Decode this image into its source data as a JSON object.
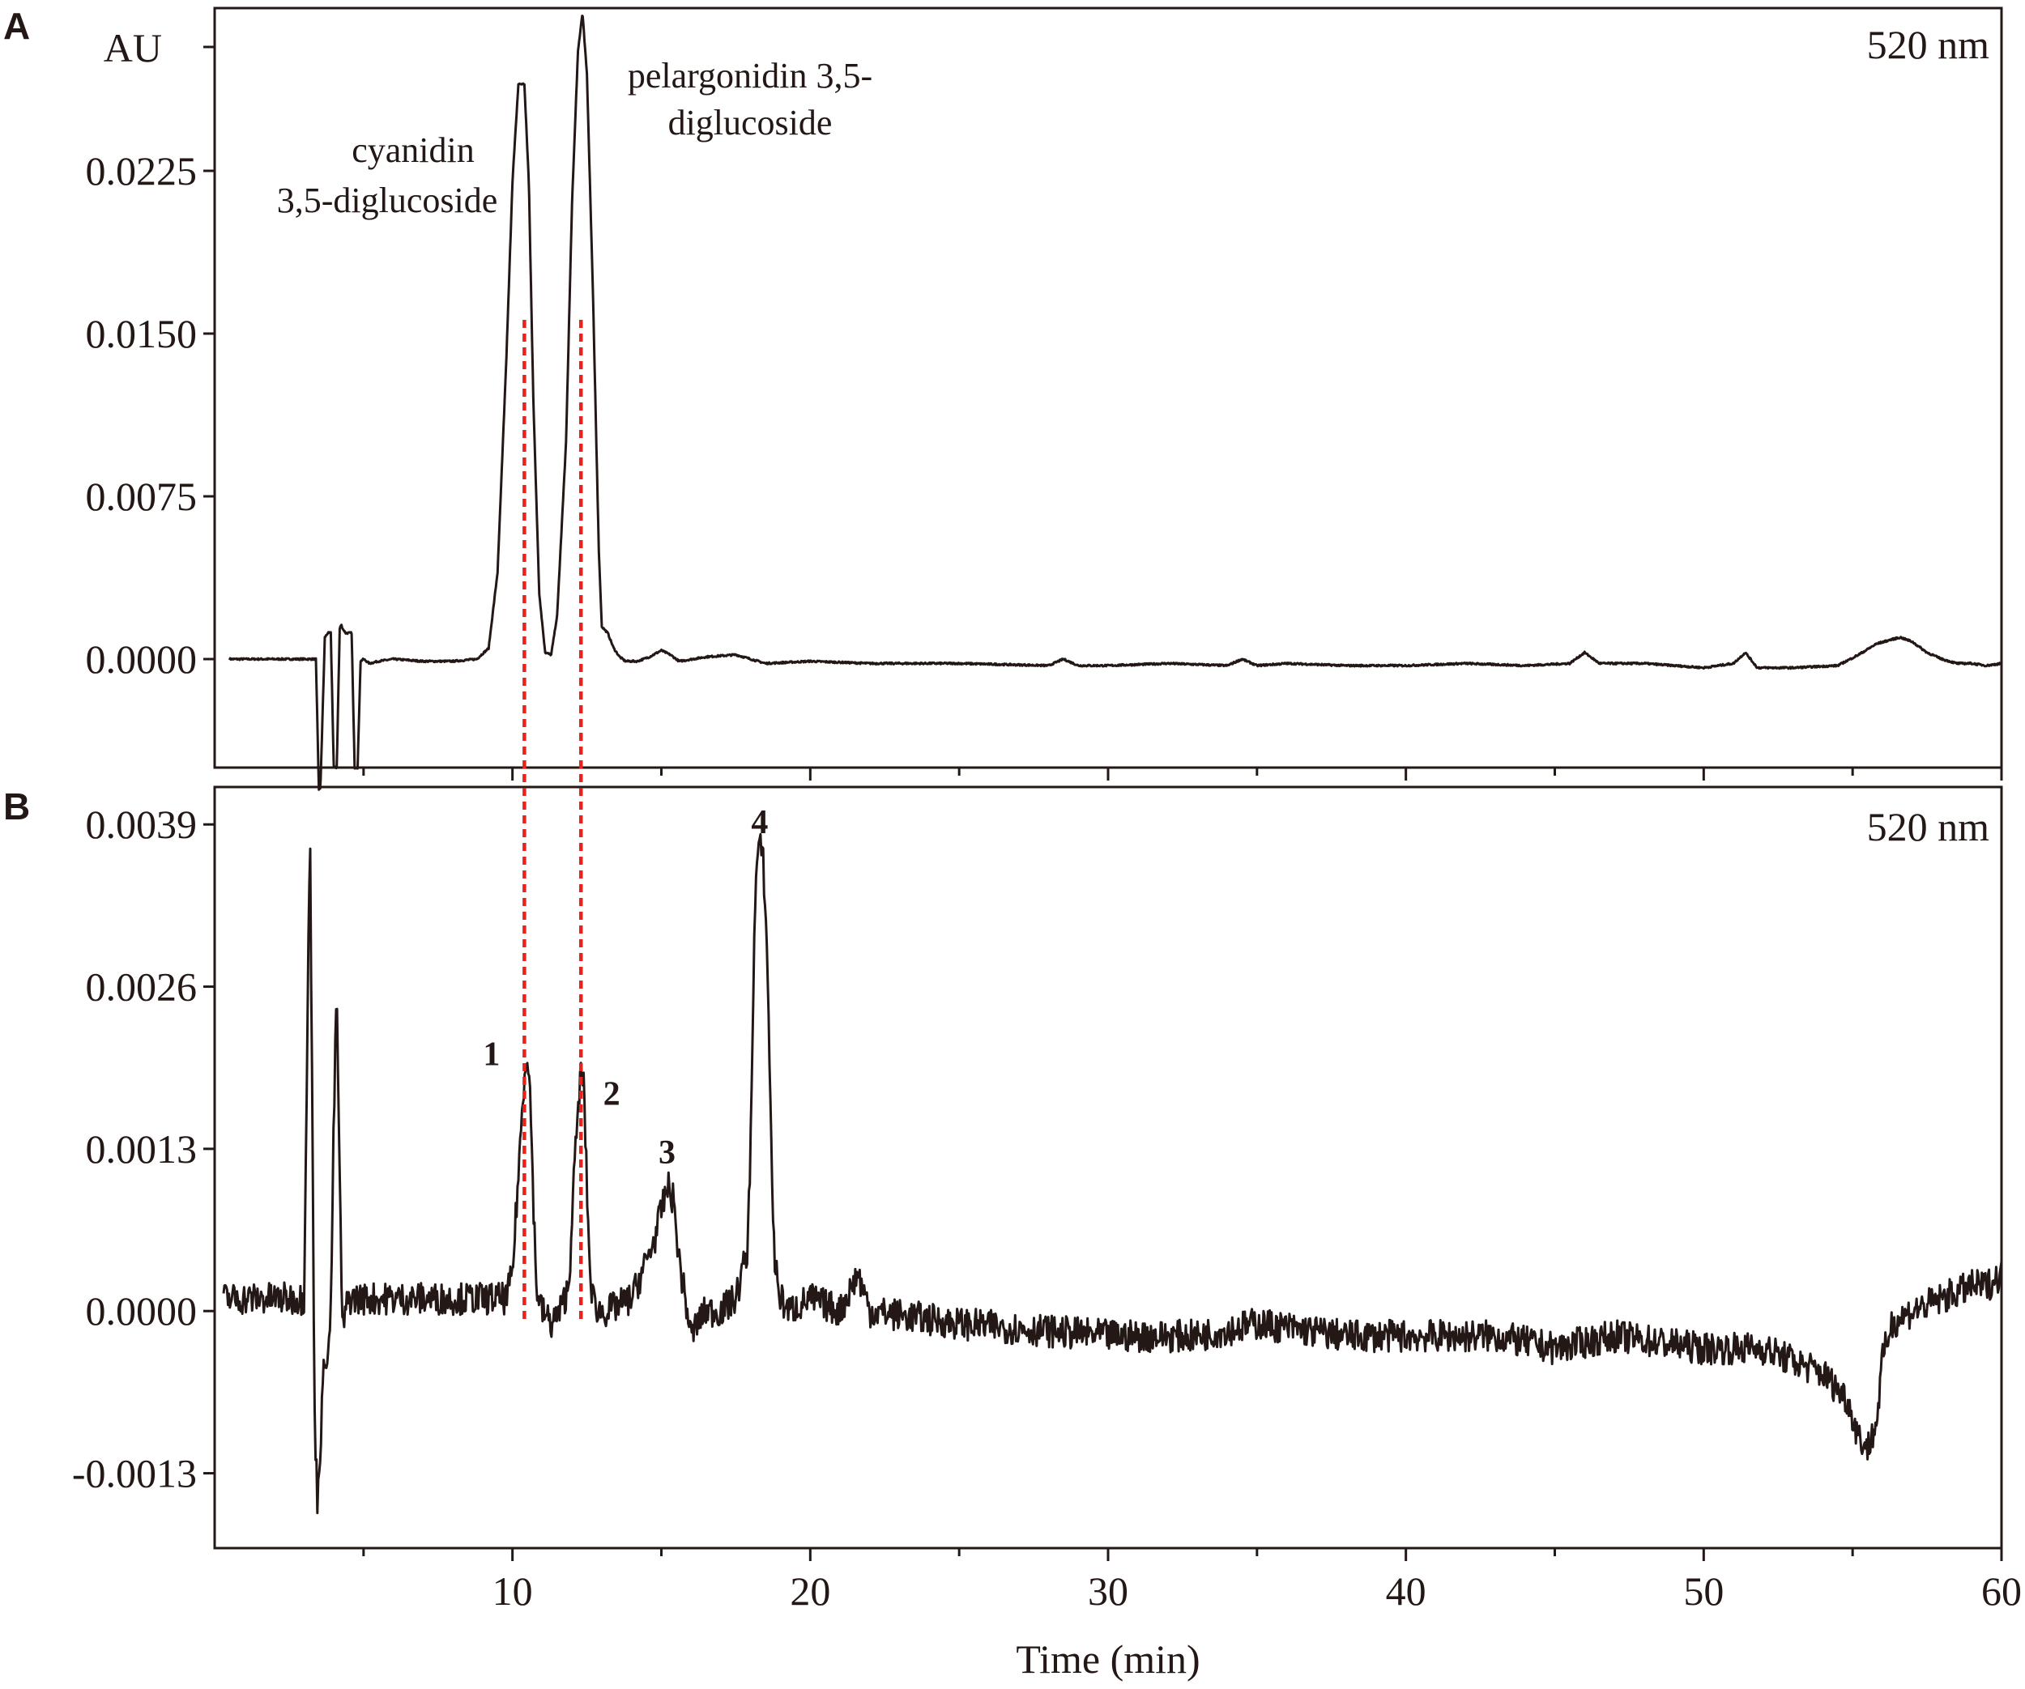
{
  "colors": {
    "ink": "#231815",
    "guide_line": "#e8231c",
    "background": "#ffffff"
  },
  "chart_data": [
    {
      "type": "line",
      "panel_label": "A",
      "ylabel": "AU",
      "wavelength": "520 nm",
      "xlim": [
        0,
        60
      ],
      "ylim": [
        -0.005,
        0.03
      ],
      "yticks": [
        0.0,
        0.0075,
        0.015,
        0.0225
      ],
      "ytick_labels": [
        "0.0000",
        "0.0075",
        "0.0150",
        "0.0225"
      ],
      "grid": false,
      "series": [
        {
          "x": [
            0.5,
            2.0,
            3.0,
            3.4,
            3.5,
            3.55,
            3.7,
            3.8,
            3.9,
            4.0,
            4.1,
            4.2,
            4.25,
            4.3,
            4.4,
            4.5,
            4.6,
            4.7,
            4.8,
            4.9,
            5.0,
            5.2,
            5.5,
            6.0,
            7.0,
            8.0,
            8.8,
            9.2,
            9.5,
            9.8,
            10.0,
            10.2,
            10.4,
            10.55,
            10.7,
            10.9,
            11.1,
            11.3,
            11.5,
            11.8,
            12.0,
            12.2,
            12.35,
            12.5,
            12.7,
            12.9,
            13.0,
            13.2,
            13.4,
            13.6,
            13.8,
            14.2,
            14.6,
            15.0,
            15.3,
            15.6,
            16.5,
            17.5,
            18.0,
            18.5,
            20,
            22,
            25,
            28,
            28.5,
            29,
            30,
            32,
            34,
            34.5,
            35,
            36,
            38,
            40,
            42,
            44,
            45.5,
            46.0,
            46.5,
            48,
            50,
            51.0,
            51.4,
            51.8,
            53,
            54.5,
            55.2,
            55.8,
            56.3,
            56.6,
            57.0,
            57.5,
            58.0,
            58.5,
            59.0,
            59.5,
            60.0
          ],
          "y": [
            0.0,
            0.0,
            0.0,
            0.0,
            -0.006,
            -0.006,
            0.001,
            0.0012,
            0.0012,
            -0.005,
            -0.005,
            0.0014,
            0.0016,
            0.0014,
            0.0012,
            0.0012,
            0.0012,
            -0.005,
            -0.005,
            -0.0001,
            0.0,
            -0.0002,
            -0.0001,
            0.0,
            -0.0001,
            -0.0001,
            0.0,
            0.0005,
            0.004,
            0.014,
            0.022,
            0.0265,
            0.0265,
            0.022,
            0.012,
            0.003,
            0.0003,
            0.0002,
            0.002,
            0.01,
            0.021,
            0.028,
            0.0298,
            0.027,
            0.017,
            0.005,
            0.0015,
            0.0012,
            0.0005,
            0.0001,
            -0.0001,
            -0.0001,
            0.0001,
            0.0004,
            0.0002,
            -0.0001,
            0.0001,
            0.0002,
            0.0,
            -0.0002,
            -0.0001,
            -0.0002,
            -0.0002,
            -0.0003,
            0.0,
            -0.0003,
            -0.0003,
            -0.0002,
            -0.0003,
            0.0,
            -0.0003,
            -0.0002,
            -0.0003,
            -0.0003,
            -0.0002,
            -0.0003,
            -0.0002,
            0.0003,
            -0.0002,
            -0.0002,
            -0.0004,
            -0.0002,
            0.0003,
            -0.0004,
            -0.0004,
            -0.0003,
            0.0002,
            0.0007,
            0.0009,
            0.001,
            0.0008,
            0.0003,
            0.0,
            -0.0002,
            -0.0002,
            -0.0003,
            -0.0002
          ]
        }
      ],
      "annotations": [
        {
          "text_lines": [
            "cyanidin",
            "3,5-diglucoside"
          ],
          "x": 8.0
        },
        {
          "text_lines": [
            "pelargonidin 3,5-",
            "diglucoside"
          ],
          "x": 15.5
        }
      ]
    },
    {
      "type": "line",
      "panel_label": "B",
      "wavelength": "520 nm",
      "xlabel": "Time (min)",
      "xlim": [
        0,
        60
      ],
      "ylim": [
        -0.0019,
        0.0042
      ],
      "xticks": [
        10,
        20,
        30,
        40,
        50,
        60
      ],
      "xtick_labels": [
        "10",
        "20",
        "30",
        "40",
        "50",
        "60"
      ],
      "yticks": [
        -0.0013,
        0.0,
        0.0013,
        0.0026,
        0.0039
      ],
      "ytick_labels": [
        "-0.0013",
        "0.0000",
        "0.0013",
        "0.0026",
        "0.0039"
      ],
      "grid": false,
      "series": [
        {
          "x": [
            0.3,
            1.0,
            2.0,
            3.0,
            3.1,
            3.2,
            3.3,
            3.35,
            3.45,
            3.5,
            3.6,
            3.7,
            3.8,
            3.9,
            4.0,
            4.1,
            4.2,
            4.3,
            4.4,
            4.5,
            4.6,
            5.0,
            6.0,
            7.0,
            8.0,
            9.0,
            9.8,
            10.0,
            10.2,
            10.4,
            10.5,
            10.6,
            10.7,
            10.8,
            11.0,
            11.3,
            11.6,
            11.9,
            12.0,
            12.2,
            12.3,
            12.4,
            12.5,
            12.6,
            12.7,
            12.9,
            13.2,
            14.0,
            14.5,
            14.8,
            15.0,
            15.2,
            15.4,
            15.6,
            15.8,
            16.0,
            16.2,
            16.5,
            17.0,
            17.5,
            17.9,
            18.0,
            18.1,
            18.2,
            18.3,
            18.4,
            18.5,
            18.6,
            18.7,
            18.8,
            19.0,
            19.3,
            20.0,
            21.0,
            21.6,
            22.0,
            25.0,
            30.0,
            33.0,
            35.0,
            38.0,
            40.0,
            43.0,
            45.0,
            47.0,
            50.0,
            52.0,
            54.0,
            54.8,
            55.2,
            55.5,
            55.8,
            56.0,
            56.3,
            57.0,
            58.0,
            59.0,
            59.5,
            60.0
          ],
          "y": [
            0.0001,
            0.0001,
            0.0001,
            0.0001,
            0.002,
            0.0039,
            0.001,
            -0.0008,
            -0.0015,
            -0.0013,
            -0.0008,
            -0.0003,
            -0.0004,
            0.0,
            0.0015,
            0.0026,
            0.001,
            -0.0002,
            0.0,
            0.0001,
            0.0001,
            0.0001,
            0.0001,
            0.0001,
            0.0001,
            0.0001,
            0.0001,
            0.0003,
            0.0011,
            0.0019,
            0.0021,
            0.0017,
            0.0009,
            0.0002,
            0.0,
            -0.0001,
            0.0,
            0.0002,
            0.0008,
            0.0016,
            0.0019,
            0.0018,
            0.001,
            0.0003,
            0.0001,
            0.0,
            0.0,
            0.0001,
            0.0004,
            0.0006,
            0.0008,
            0.001,
            0.0009,
            0.0004,
            0.0001,
            -0.0002,
            -0.0001,
            0.0,
            0.0,
            0.0001,
            0.0005,
            0.0014,
            0.0028,
            0.0036,
            0.0037,
            0.0037,
            0.0032,
            0.0024,
            0.0012,
            0.0004,
            0.0001,
            0.0,
            0.0001,
            0.0,
            0.0003,
            0.0,
            -0.0001,
            -0.0002,
            -0.0002,
            -0.0001,
            -0.0002,
            -0.0002,
            -0.0002,
            -0.0003,
            -0.0002,
            -0.0003,
            -0.0003,
            -0.0005,
            -0.0007,
            -0.001,
            -0.0011,
            -0.0009,
            -0.0004,
            -0.0001,
            0.0,
            0.0001,
            0.0002,
            0.0002,
            0.0003
          ]
        }
      ],
      "peak_labels": [
        {
          "text": "1",
          "x": 10.55
        },
        {
          "text": "2",
          "x": 12.35
        },
        {
          "text": "3",
          "x": 15.3
        },
        {
          "text": "4",
          "x": 18.3
        }
      ]
    }
  ],
  "guide_lines": [
    {
      "x": 10.4
    },
    {
      "x": 12.3
    }
  ]
}
